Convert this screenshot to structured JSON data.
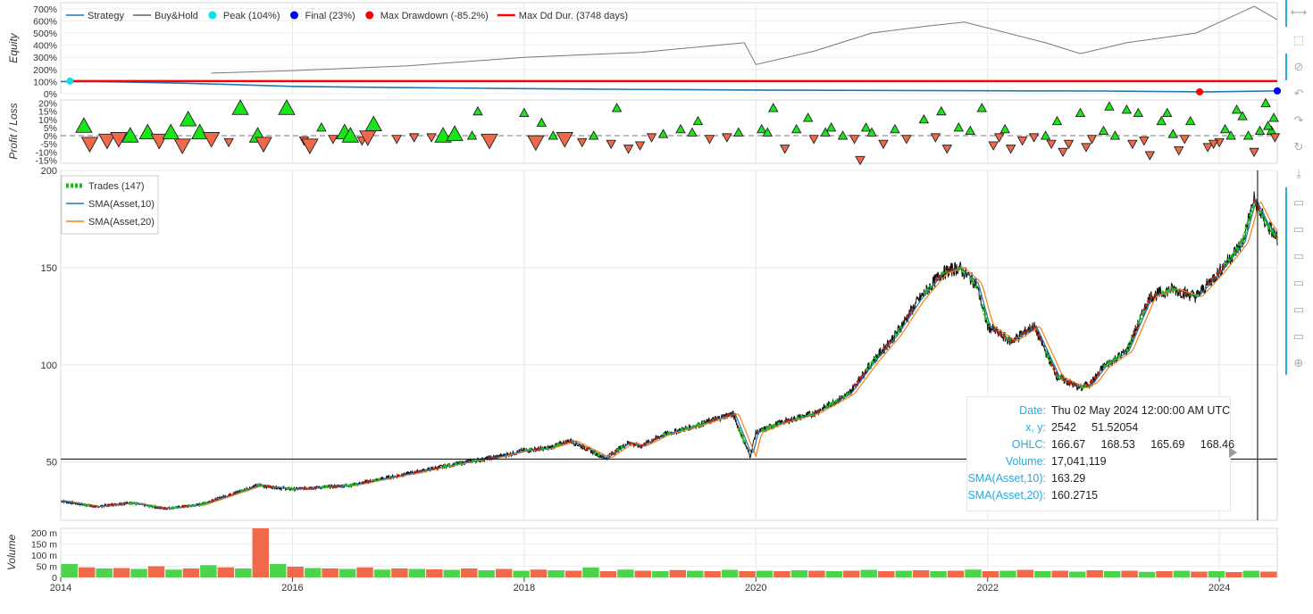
{
  "chart_data": {
    "x_ticks": [
      "2014",
      "2016",
      "2018",
      "2020",
      "2022",
      "2024"
    ],
    "x_tick_years": [
      2014,
      2016,
      2018,
      2020,
      2022,
      2024
    ],
    "x_range_years": [
      2014.0,
      2024.5
    ],
    "equity": {
      "type": "line",
      "ylabel": "Equity",
      "yticks": [
        "0%",
        "100%",
        "200%",
        "300%",
        "400%",
        "500%",
        "600%",
        "700%"
      ],
      "ylim": [
        0,
        750
      ],
      "legend": [
        {
          "label": "Strategy",
          "kind": "line",
          "color": "#1f77b4"
        },
        {
          "label": "Buy&Hold",
          "kind": "line",
          "color": "#666666"
        },
        {
          "label": "Peak (104%)",
          "kind": "dot",
          "color": "#00e5ee"
        },
        {
          "label": "Final (23%)",
          "kind": "dot",
          "color": "#0000ff"
        },
        {
          "label": "Max Drawdown (-85.2%)",
          "kind": "dot",
          "color": "#ff0000"
        },
        {
          "label": "Max Dd Dur. (3748 days)",
          "kind": "line",
          "color": "#ff0000"
        }
      ],
      "series": [
        {
          "name": "Strategy",
          "x": [
            2014.0,
            2014.3,
            2015.0,
            2015.5,
            2016.0,
            2017.0,
            2018.0,
            2019.0,
            2020.0,
            2021.0,
            2022.0,
            2023.0,
            2023.9,
            2024.5
          ],
          "values": [
            100,
            100,
            88,
            75,
            60,
            50,
            42,
            35,
            30,
            27,
            24,
            22,
            15,
            23
          ]
        },
        {
          "name": "Buy&Hold",
          "x": [
            2015.3,
            2016.0,
            2017.0,
            2018.0,
            2019.0,
            2019.9,
            2020.0,
            2020.5,
            2021.0,
            2021.5,
            2021.8,
            2022.5,
            2022.8,
            2023.2,
            2023.8,
            2024.3,
            2024.5
          ],
          "values": [
            170,
            190,
            230,
            300,
            340,
            420,
            240,
            350,
            500,
            560,
            590,
            420,
            330,
            420,
            500,
            720,
            610
          ]
        }
      ],
      "peak": {
        "x": 2014.08,
        "value": 104
      },
      "final": {
        "x": 2024.5,
        "value": 23
      },
      "max_drawdown": {
        "x": 2023.83,
        "value": 15
      },
      "max_dd_duration": {
        "x": [
          2014.08,
          2024.5
        ],
        "value": 104
      }
    },
    "profit_loss": {
      "type": "scatter",
      "ylabel": "Profit / Loss",
      "yticks": [
        "20%",
        "15%",
        "10%",
        "5%",
        "0%",
        "-5%",
        "-10%",
        "-15%"
      ],
      "ylim": [
        -17,
        22
      ],
      "trades": [
        [
          2014.2,
          6,
          1
        ],
        [
          2014.25,
          -5,
          1
        ],
        [
          2014.4,
          -3,
          1
        ],
        [
          2014.5,
          -2,
          1
        ],
        [
          2014.6,
          0,
          1
        ],
        [
          2014.75,
          2,
          1
        ],
        [
          2014.85,
          -3,
          1
        ],
        [
          2014.95,
          2,
          1
        ],
        [
          2015.05,
          -6,
          1
        ],
        [
          2015.1,
          10,
          1
        ],
        [
          2015.2,
          2,
          1
        ],
        [
          2015.3,
          -2,
          1
        ],
        [
          2015.45,
          -4,
          0
        ],
        [
          2015.55,
          17,
          1
        ],
        [
          2015.7,
          0,
          1
        ],
        [
          2015.75,
          -5,
          1
        ],
        [
          2015.95,
          17,
          1
        ],
        [
          2016.1,
          -3,
          0
        ],
        [
          2016.15,
          -6,
          1
        ],
        [
          2016.25,
          5,
          0
        ],
        [
          2016.35,
          -2,
          0
        ],
        [
          2016.45,
          2,
          1
        ],
        [
          2016.5,
          0,
          1
        ],
        [
          2016.7,
          7,
          1
        ],
        [
          2016.9,
          -2,
          0
        ],
        [
          2017.05,
          -1,
          0
        ],
        [
          2017.2,
          -1,
          0
        ],
        [
          2017.3,
          0,
          1
        ],
        [
          2017.4,
          1,
          1
        ],
        [
          2017.55,
          0,
          0
        ],
        [
          2017.7,
          -3,
          1
        ],
        [
          2018.0,
          14,
          0
        ],
        [
          2018.1,
          -4,
          1
        ],
        [
          2018.25,
          0,
          0
        ],
        [
          2018.35,
          -2,
          1
        ],
        [
          2018.5,
          -4,
          0
        ],
        [
          2018.6,
          0,
          0
        ],
        [
          2018.75,
          -5,
          0
        ],
        [
          2018.9,
          -8,
          0
        ],
        [
          2019.0,
          -6,
          0
        ],
        [
          2019.1,
          -1,
          0
        ],
        [
          2019.2,
          1,
          0
        ],
        [
          2019.35,
          4,
          0
        ],
        [
          2019.45,
          2,
          0
        ],
        [
          2019.6,
          -2,
          0
        ],
        [
          2019.75,
          -1,
          0
        ],
        [
          2019.85,
          2,
          0
        ],
        [
          2020.05,
          4,
          0
        ],
        [
          2020.1,
          2,
          0
        ],
        [
          2020.25,
          -8,
          0
        ],
        [
          2020.35,
          4,
          0
        ],
        [
          2020.5,
          -2,
          0
        ],
        [
          2020.6,
          2,
          0
        ],
        [
          2020.65,
          5,
          0
        ],
        [
          2020.75,
          0,
          0
        ],
        [
          2020.85,
          -2,
          0
        ],
        [
          2020.95,
          5,
          0
        ],
        [
          2021.0,
          2,
          0
        ],
        [
          2021.1,
          -5,
          0
        ],
        [
          2021.2,
          4,
          0
        ],
        [
          2021.3,
          -2,
          0
        ],
        [
          2021.45,
          10,
          0
        ],
        [
          2021.55,
          -1,
          0
        ],
        [
          2021.65,
          -8,
          0
        ],
        [
          2021.75,
          5,
          0
        ],
        [
          2021.85,
          3,
          0
        ],
        [
          2021.95,
          17,
          0
        ],
        [
          2022.05,
          -6,
          0
        ],
        [
          2022.15,
          4,
          0
        ],
        [
          2022.2,
          -8,
          0
        ],
        [
          2022.3,
          -3,
          0
        ],
        [
          2022.4,
          -1,
          0
        ],
        [
          2022.5,
          0,
          0
        ],
        [
          2022.6,
          9,
          0
        ],
        [
          2022.7,
          -5,
          0
        ],
        [
          2022.8,
          14,
          0
        ],
        [
          2022.85,
          -7,
          0
        ],
        [
          2022.9,
          -2,
          0
        ],
        [
          2023.0,
          3,
          0
        ],
        [
          2023.1,
          0,
          0
        ],
        [
          2023.25,
          -5,
          0
        ],
        [
          2023.35,
          -3,
          0
        ],
        [
          2023.4,
          -12,
          0
        ],
        [
          2023.5,
          9,
          0
        ],
        [
          2023.6,
          1,
          0
        ],
        [
          2023.65,
          -9,
          0
        ],
        [
          2023.7,
          -2,
          0
        ],
        [
          2023.9,
          -7,
          0
        ],
        [
          2024.0,
          -4,
          0
        ],
        [
          2024.1,
          0,
          0
        ],
        [
          2024.2,
          12,
          0
        ],
        [
          2024.25,
          0,
          0
        ],
        [
          2024.3,
          -10,
          0
        ],
        [
          2024.4,
          20,
          0
        ],
        [
          2024.45,
          3,
          0
        ],
        [
          2024.48,
          -1,
          0
        ],
        [
          2016.6,
          -3,
          0
        ],
        [
          2016.65,
          -1,
          1
        ],
        [
          2017.6,
          15,
          0
        ],
        [
          2018.15,
          8,
          0
        ],
        [
          2018.8,
          17,
          0
        ],
        [
          2019.5,
          9,
          0
        ],
        [
          2020.45,
          11,
          0
        ],
        [
          2020.15,
          17,
          0
        ],
        [
          2020.9,
          -15,
          0
        ],
        [
          2021.6,
          15,
          0
        ],
        [
          2022.1,
          -1,
          0
        ],
        [
          2022.55,
          -5,
          0
        ],
        [
          2022.65,
          -10,
          0
        ],
        [
          2023.05,
          18,
          0
        ],
        [
          2023.2,
          16,
          0
        ],
        [
          2023.3,
          14,
          0
        ],
        [
          2023.55,
          14,
          0
        ],
        [
          2023.75,
          9,
          0
        ],
        [
          2023.95,
          -5,
          0
        ],
        [
          2024.05,
          4,
          0
        ],
        [
          2024.15,
          16,
          0
        ],
        [
          2024.35,
          3,
          0
        ],
        [
          2024.42,
          6,
          0
        ],
        [
          2024.47,
          11,
          0
        ]
      ]
    },
    "price": {
      "type": "candlestick",
      "yticks": [
        "50",
        "100",
        "150",
        "200"
      ],
      "ylim": [
        20,
        200
      ],
      "legend": [
        {
          "label": "Trades (147)",
          "kind": "dash",
          "color": "#12c112"
        },
        {
          "label": "SMA(Asset,10)",
          "kind": "line",
          "color": "#1f77b4"
        },
        {
          "label": "SMA(Asset,20)",
          "kind": "line",
          "color": "#ff7f0e"
        }
      ],
      "series": [
        {
          "name": "Asset",
          "x": [
            2014.0,
            2014.3,
            2014.6,
            2014.9,
            2015.2,
            2015.45,
            2015.7,
            2016.0,
            2016.5,
            2017.0,
            2017.5,
            2017.8,
            2018.0,
            2018.2,
            2018.4,
            2018.7,
            2018.9,
            2019.0,
            2019.2,
            2019.5,
            2019.8,
            2019.95,
            2020.0,
            2020.2,
            2020.5,
            2020.8,
            2021.0,
            2021.2,
            2021.4,
            2021.6,
            2021.75,
            2021.9,
            2022.0,
            2022.2,
            2022.4,
            2022.6,
            2022.8,
            2022.9,
            2023.0,
            2023.2,
            2023.4,
            2023.6,
            2023.8,
            2024.0,
            2024.2,
            2024.3,
            2024.4,
            2024.5
          ],
          "values": [
            30,
            27,
            29,
            26,
            28,
            33,
            38,
            36,
            38,
            44,
            50,
            53,
            56,
            57,
            61,
            52,
            60,
            58,
            64,
            69,
            75,
            53,
            65,
            70,
            75,
            85,
            101,
            115,
            133,
            147,
            150,
            142,
            120,
            112,
            120,
            94,
            88,
            91,
            99,
            107,
            135,
            139,
            135,
            148,
            163,
            185,
            173,
            165
          ]
        }
      ],
      "crosshair": {
        "x": 2024.33,
        "y": 51.5
      }
    },
    "volume": {
      "type": "bar",
      "ylabel": "Volume",
      "yticks": [
        "0",
        "50 m",
        "100 m",
        "150 m",
        "200 m"
      ],
      "ylim": [
        0,
        220
      ],
      "values": [
        60,
        45,
        40,
        42,
        38,
        50,
        35,
        40,
        55,
        45,
        40,
        220,
        60,
        48,
        42,
        40,
        38,
        45,
        35,
        40,
        38,
        36,
        34,
        40,
        32,
        38,
        30,
        35,
        32,
        30,
        45,
        28,
        35,
        30,
        28,
        33,
        30,
        28,
        34,
        28,
        30,
        28,
        32,
        30,
        28,
        30,
        34,
        28,
        30,
        32,
        28,
        30,
        35,
        28,
        30,
        34,
        28,
        30,
        26,
        32,
        28,
        30,
        25,
        28,
        30,
        26,
        28,
        24,
        30,
        26
      ],
      "colors": [
        "#4cd44c",
        "#f0694a"
      ]
    },
    "tooltip": {
      "rows": [
        {
          "key": "Date:",
          "value": "Thu 02 May 2024 12:00:00 AM UTC"
        },
        {
          "key": "x, y:",
          "value": "2542     51.52054"
        },
        {
          "key": "OHLC:",
          "value": "166.67     168.53     165.69     168.46"
        },
        {
          "key": "Volume:",
          "value": "17,041,119"
        },
        {
          "key": "SMA(Asset,10):",
          "value": "163.29"
        },
        {
          "key": "SMA(Asset,20):",
          "value": "160.2715"
        }
      ]
    }
  },
  "toolbar": {
    "tools": [
      {
        "name": "pan-tool-icon",
        "glyph": "⟷"
      },
      {
        "name": "box-zoom-tool-icon",
        "glyph": "⬚"
      },
      {
        "name": "wheel-zoom-tool-icon",
        "glyph": "⊘"
      },
      {
        "name": "undo-tool-icon",
        "glyph": "↶"
      },
      {
        "name": "redo-tool-icon",
        "glyph": "↷"
      },
      {
        "name": "reset-tool-icon",
        "glyph": "↻"
      },
      {
        "name": "save-tool-icon",
        "glyph": "⤓"
      },
      {
        "name": "hover-tool-1-icon",
        "glyph": "▭"
      },
      {
        "name": "hover-tool-2-icon",
        "glyph": "▭"
      },
      {
        "name": "hover-tool-3-icon",
        "glyph": "▭"
      },
      {
        "name": "hover-tool-4-icon",
        "glyph": "▭"
      },
      {
        "name": "hover-tool-5-icon",
        "glyph": "▭"
      },
      {
        "name": "hover-tool-6-icon",
        "glyph": "▭"
      },
      {
        "name": "crosshair-tool-icon",
        "glyph": "⊕"
      }
    ]
  }
}
